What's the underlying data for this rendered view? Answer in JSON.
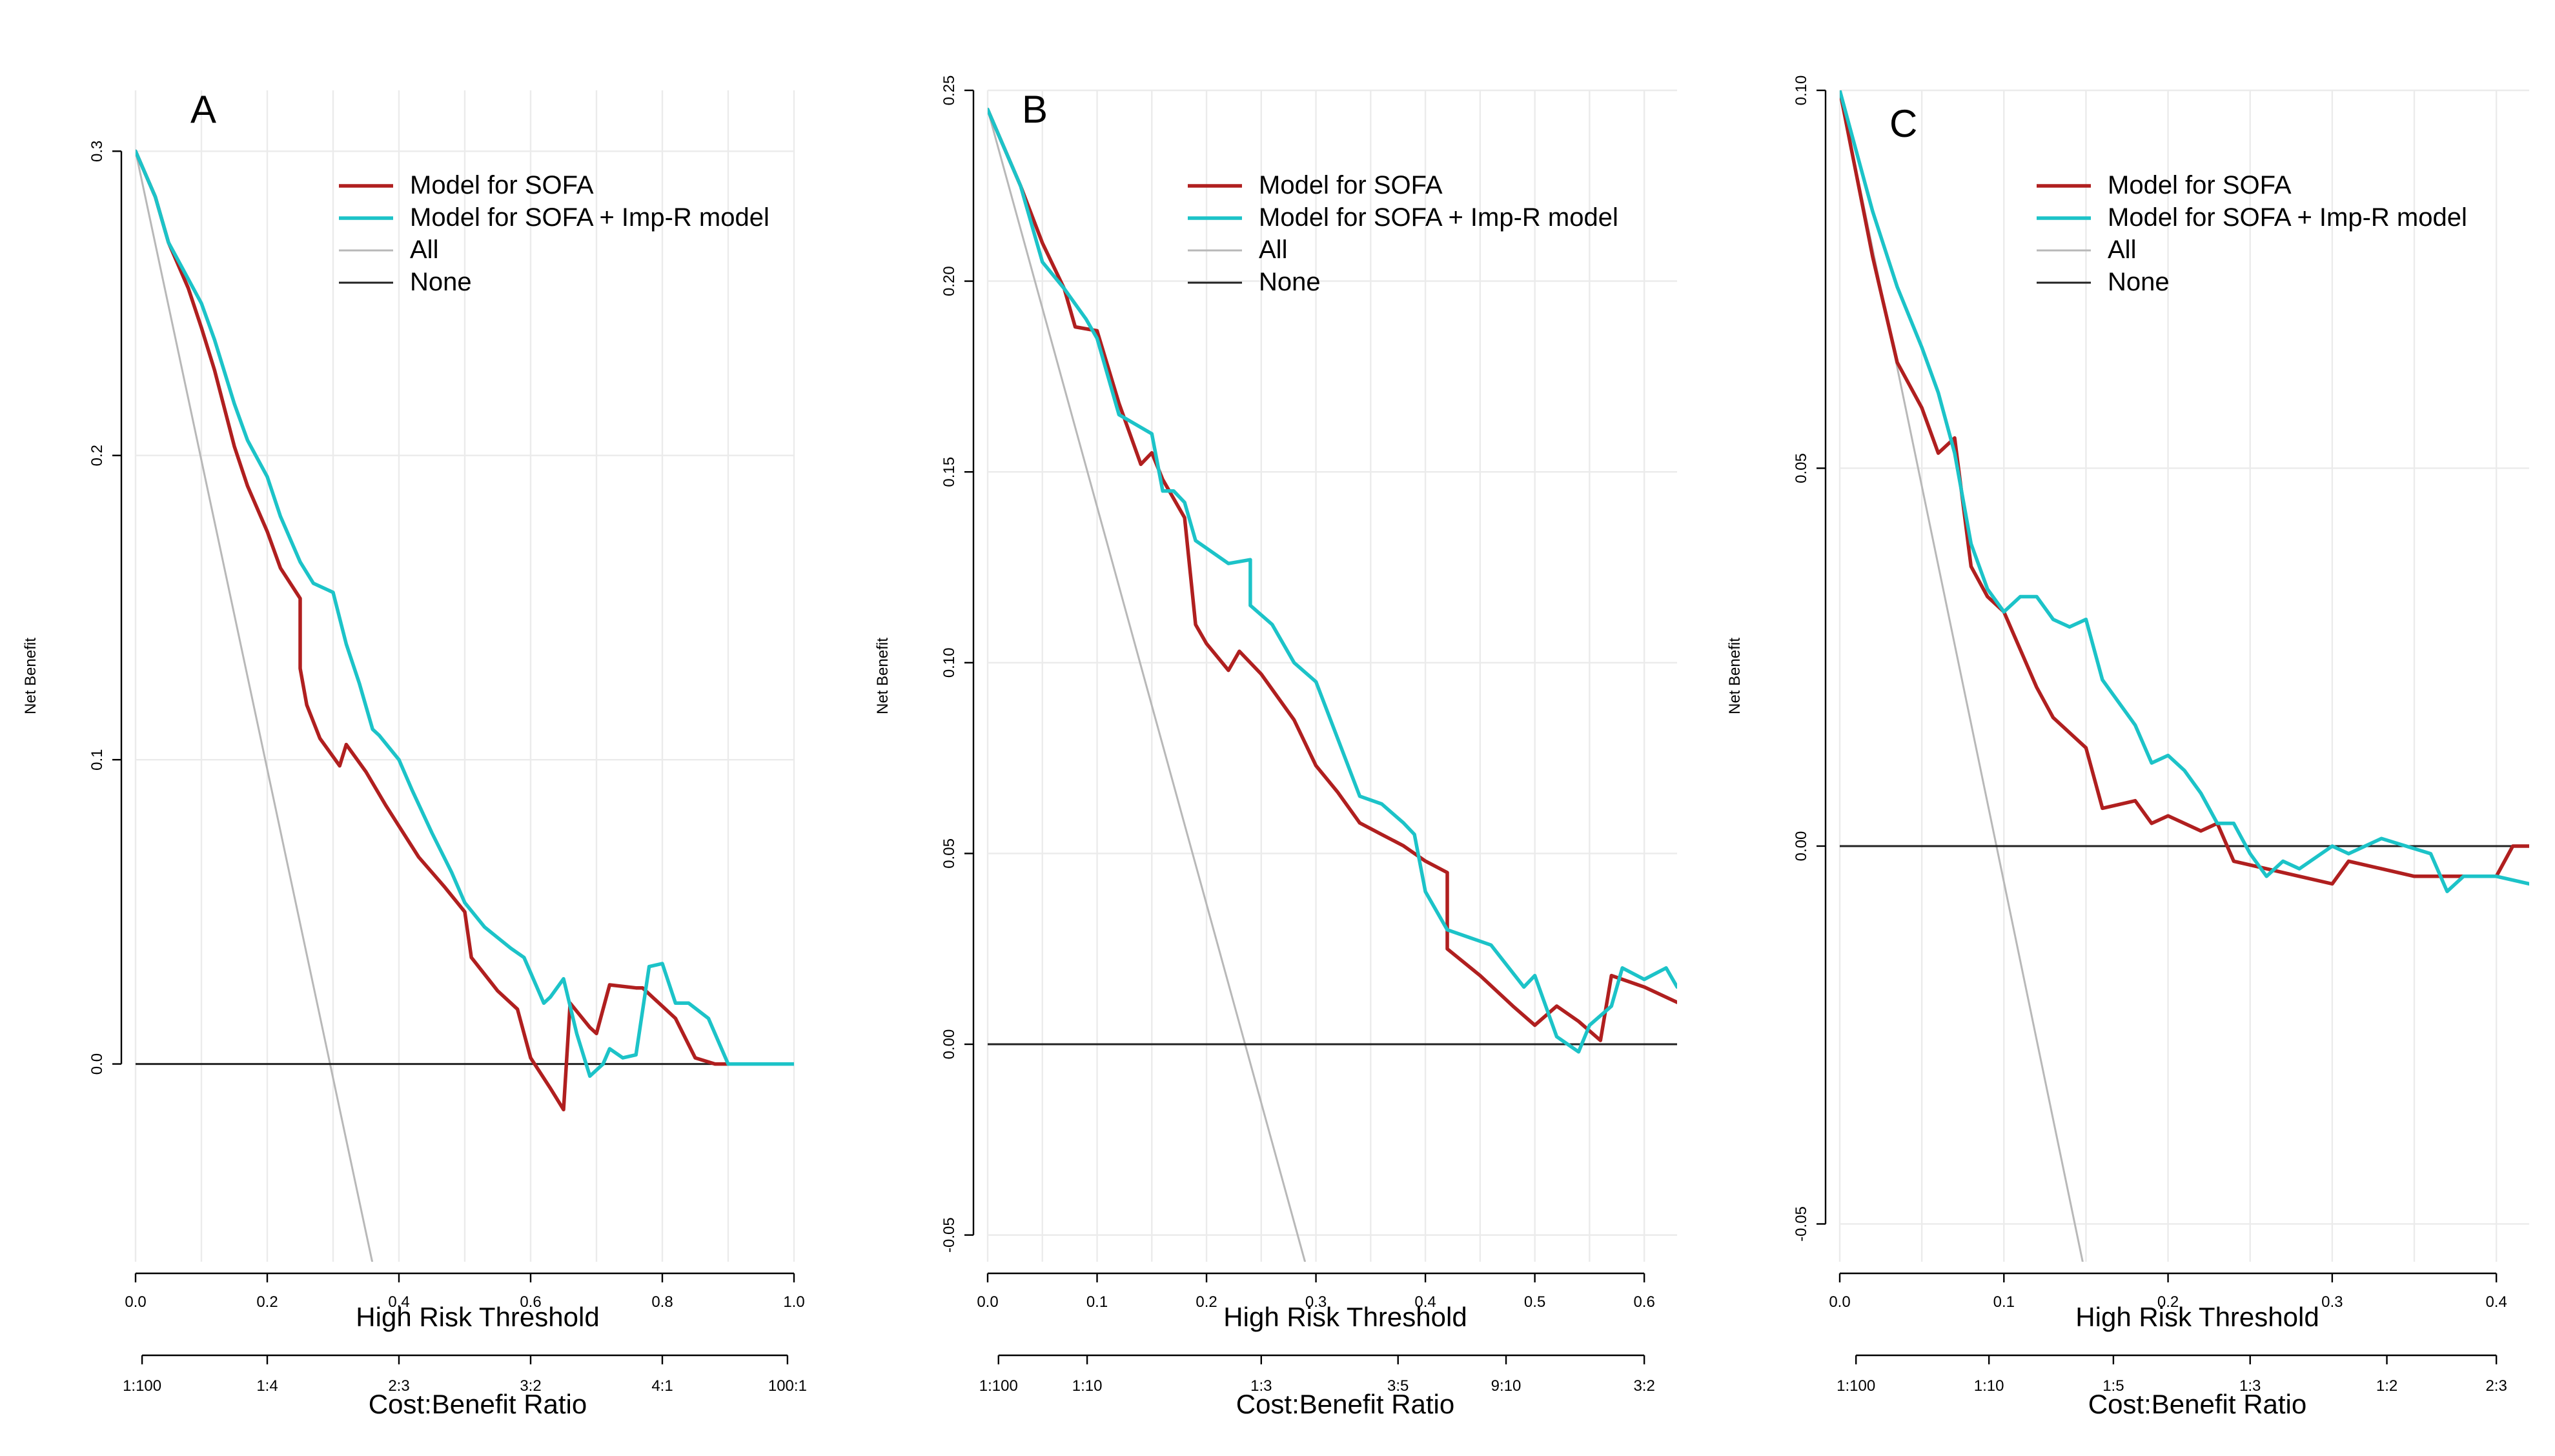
{
  "chart_data": [
    {
      "type": "line",
      "panel_label": "A",
      "xlabel": "High Risk Threshold",
      "ylabel": "Net Benefit",
      "xlim": [
        0,
        1.0
      ],
      "ylim": [
        -0.065,
        0.32
      ],
      "x_ticks": [
        "0.0",
        "0.2",
        "0.4",
        "0.6",
        "0.8",
        "1.0"
      ],
      "x_tick_values": [
        0,
        0.2,
        0.4,
        0.6,
        0.8,
        1.0
      ],
      "y_ticks": [
        "0.0",
        "0.1",
        "0.2",
        "0.3"
      ],
      "y_tick_values": [
        0,
        0.1,
        0.2,
        0.3
      ],
      "secondary_axis_label": "Cost:Benefit Ratio",
      "secondary_ticks": [
        "1:100",
        "1:4",
        "2:3",
        "3:2",
        "4:1",
        "100:1"
      ],
      "secondary_tick_thresholds": [
        0.0099,
        0.2,
        0.4,
        0.6,
        0.8,
        0.9901
      ],
      "legend": [
        "Model for SOFA",
        "Model for SOFA + Imp-R model",
        "All",
        "None"
      ],
      "grid": true,
      "series": [
        {
          "name": "Model for SOFA",
          "color": "#b01f1f",
          "x": [
            0,
            0.03,
            0.05,
            0.08,
            0.1,
            0.12,
            0.15,
            0.17,
            0.2,
            0.22,
            0.25,
            0.25,
            0.26,
            0.28,
            0.31,
            0.32,
            0.35,
            0.38,
            0.43,
            0.47,
            0.5,
            0.51,
            0.55,
            0.58,
            0.6,
            0.63,
            0.65,
            0.66,
            0.69,
            0.7,
            0.72,
            0.76,
            0.77,
            0.82,
            0.85,
            0.88,
            0.9
          ],
          "y": [
            0.3,
            0.285,
            0.27,
            0.255,
            0.242,
            0.228,
            0.203,
            0.19,
            0.175,
            0.163,
            0.153,
            0.13,
            0.118,
            0.107,
            0.098,
            0.105,
            0.096,
            0.085,
            0.068,
            0.058,
            0.05,
            0.035,
            0.024,
            0.018,
            0.002,
            -0.008,
            -0.015,
            0.02,
            0.012,
            0.01,
            0.026,
            0.025,
            0.025,
            0.015,
            0.002,
            0,
            0
          ]
        },
        {
          "name": "Model for SOFA + Imp-R model",
          "color": "#1cc3c8",
          "x": [
            0,
            0.03,
            0.05,
            0.08,
            0.1,
            0.12,
            0.15,
            0.17,
            0.2,
            0.22,
            0.25,
            0.27,
            0.3,
            0.32,
            0.34,
            0.36,
            0.37,
            0.4,
            0.42,
            0.45,
            0.48,
            0.5,
            0.53,
            0.57,
            0.59,
            0.6,
            0.62,
            0.63,
            0.65,
            0.67,
            0.69,
            0.71,
            0.72,
            0.74,
            0.76,
            0.78,
            0.8,
            0.82,
            0.84,
            0.87,
            0.9,
            0.95,
            1.0
          ],
          "y": [
            0.3,
            0.285,
            0.27,
            0.258,
            0.25,
            0.238,
            0.217,
            0.205,
            0.193,
            0.18,
            0.165,
            0.158,
            0.155,
            0.138,
            0.125,
            0.11,
            0.108,
            0.1,
            0.09,
            0.076,
            0.063,
            0.053,
            0.045,
            0.038,
            0.035,
            0.03,
            0.02,
            0.022,
            0.028,
            0.01,
            -0.004,
            0,
            0.005,
            0.002,
            0.003,
            0.032,
            0.033,
            0.02,
            0.02,
            0.015,
            0,
            0,
            0
          ]
        },
        {
          "name": "All",
          "color": "#b8b8b8",
          "x": [
            0,
            0.36
          ],
          "y": [
            0.3,
            -0.0656
          ]
        },
        {
          "name": "None",
          "color": "#222222",
          "x": [
            0,
            1.0
          ],
          "y": [
            0,
            0
          ]
        }
      ]
    },
    {
      "type": "line",
      "panel_label": "B",
      "xlabel": "High Risk Threshold",
      "ylabel": "Net Benefit",
      "xlim": [
        0,
        0.63
      ],
      "ylim": [
        -0.057,
        0.25
      ],
      "x_ticks": [
        "0.0",
        "0.1",
        "0.2",
        "0.3",
        "0.4",
        "0.5",
        "0.6"
      ],
      "x_tick_values": [
        0,
        0.1,
        0.2,
        0.3,
        0.4,
        0.5,
        0.6
      ],
      "y_ticks": [
        "-0.05",
        "0.00",
        "0.05",
        "0.10",
        "0.15",
        "0.20",
        "0.25"
      ],
      "y_tick_values": [
        -0.05,
        0,
        0.05,
        0.1,
        0.15,
        0.2,
        0.25
      ],
      "secondary_axis_label": "Cost:Benefit Ratio",
      "secondary_ticks": [
        "1:100",
        "1:10",
        "1:3",
        "3:5",
        "9:10",
        "3:2"
      ],
      "secondary_tick_thresholds": [
        0.0099,
        0.0909,
        0.25,
        0.375,
        0.4737,
        0.6
      ],
      "legend": [
        "Model for SOFA",
        "Model for SOFA + Imp-R model",
        "All",
        "None"
      ],
      "grid": true,
      "series": [
        {
          "name": "Model for SOFA",
          "color": "#b01f1f",
          "x": [
            0,
            0.03,
            0.05,
            0.07,
            0.08,
            0.1,
            0.12,
            0.14,
            0.15,
            0.16,
            0.18,
            0.19,
            0.2,
            0.22,
            0.23,
            0.25,
            0.28,
            0.3,
            0.32,
            0.34,
            0.36,
            0.38,
            0.4,
            0.42,
            0.42,
            0.45,
            0.48,
            0.5,
            0.52,
            0.54,
            0.56,
            0.57,
            0.6,
            0.63
          ],
          "y": [
            0.245,
            0.225,
            0.21,
            0.198,
            0.188,
            0.187,
            0.168,
            0.152,
            0.155,
            0.148,
            0.138,
            0.11,
            0.105,
            0.098,
            0.103,
            0.097,
            0.085,
            0.073,
            0.066,
            0.058,
            0.055,
            0.052,
            0.048,
            0.045,
            0.025,
            0.018,
            0.01,
            0.005,
            0.01,
            0.006,
            0.001,
            0.018,
            0.015,
            0.011
          ]
        },
        {
          "name": "Model for SOFA + Imp-R model",
          "color": "#1cc3c8",
          "x": [
            0,
            0.03,
            0.05,
            0.07,
            0.09,
            0.1,
            0.12,
            0.15,
            0.16,
            0.17,
            0.18,
            0.19,
            0.2,
            0.22,
            0.24,
            0.24,
            0.26,
            0.28,
            0.3,
            0.32,
            0.34,
            0.36,
            0.38,
            0.39,
            0.4,
            0.42,
            0.44,
            0.46,
            0.49,
            0.5,
            0.52,
            0.54,
            0.55,
            0.57,
            0.58,
            0.6,
            0.62,
            0.63
          ],
          "y": [
            0.245,
            0.225,
            0.205,
            0.198,
            0.19,
            0.185,
            0.165,
            0.16,
            0.145,
            0.145,
            0.142,
            0.132,
            0.13,
            0.126,
            0.127,
            0.115,
            0.11,
            0.1,
            0.095,
            0.08,
            0.065,
            0.063,
            0.058,
            0.055,
            0.04,
            0.03,
            0.028,
            0.026,
            0.015,
            0.018,
            0.002,
            -0.002,
            0.005,
            0.01,
            0.02,
            0.017,
            0.02,
            0.015
          ]
        },
        {
          "name": "All",
          "color": "#b8b8b8",
          "x": [
            0,
            0.29
          ],
          "y": [
            0.245,
            -0.057
          ]
        },
        {
          "name": "None",
          "color": "#222222",
          "x": [
            0,
            0.63
          ],
          "y": [
            0,
            0
          ]
        }
      ]
    },
    {
      "type": "line",
      "panel_label": "C",
      "xlabel": "High Risk Threshold",
      "ylabel": "Net Benefit",
      "xlim": [
        0,
        0.42
      ],
      "ylim": [
        -0.055,
        0.1
      ],
      "x_ticks": [
        "0.0",
        "0.1",
        "0.2",
        "0.3",
        "0.4"
      ],
      "x_tick_values": [
        0,
        0.1,
        0.2,
        0.3,
        0.4
      ],
      "y_ticks": [
        "-0.05",
        "0.00",
        "0.05",
        "0.10"
      ],
      "y_tick_values": [
        -0.05,
        0,
        0.05,
        0.1
      ],
      "secondary_axis_label": "Cost:Benefit Ratio",
      "secondary_ticks": [
        "1:100",
        "1:10",
        "1:5",
        "1:3",
        "1:2",
        "2:3"
      ],
      "secondary_tick_thresholds": [
        0.0099,
        0.0909,
        0.1667,
        0.25,
        0.3333,
        0.4
      ],
      "legend": [
        "Model for SOFA",
        "Model for SOFA + Imp-R model",
        "All",
        "None"
      ],
      "grid": true,
      "series": [
        {
          "name": "Model for SOFA",
          "color": "#b01f1f",
          "x": [
            0,
            0.02,
            0.035,
            0.05,
            0.06,
            0.07,
            0.08,
            0.09,
            0.1,
            0.12,
            0.13,
            0.15,
            0.16,
            0.18,
            0.19,
            0.2,
            0.22,
            0.23,
            0.24,
            0.26,
            0.28,
            0.3,
            0.31,
            0.33,
            0.35,
            0.38,
            0.4,
            0.41,
            0.42
          ],
          "y": [
            0.1,
            0.078,
            0.064,
            0.058,
            0.052,
            0.054,
            0.037,
            0.033,
            0.031,
            0.021,
            0.017,
            0.013,
            0.005,
            0.006,
            0.003,
            0.004,
            0.002,
            0.003,
            -0.002,
            -0.003,
            -0.004,
            -0.005,
            -0.002,
            -0.003,
            -0.004,
            -0.004,
            -0.004,
            0,
            0
          ]
        },
        {
          "name": "Model for SOFA + Imp-R model",
          "color": "#1cc3c8",
          "x": [
            0,
            0.02,
            0.035,
            0.05,
            0.06,
            0.07,
            0.08,
            0.09,
            0.1,
            0.11,
            0.12,
            0.13,
            0.14,
            0.15,
            0.16,
            0.18,
            0.19,
            0.2,
            0.21,
            0.22,
            0.23,
            0.24,
            0.25,
            0.26,
            0.27,
            0.28,
            0.3,
            0.31,
            0.33,
            0.36,
            0.37,
            0.38,
            0.4,
            0.42
          ],
          "y": [
            0.1,
            0.084,
            0.074,
            0.066,
            0.06,
            0.052,
            0.04,
            0.034,
            0.031,
            0.033,
            0.033,
            0.03,
            0.029,
            0.03,
            0.022,
            0.016,
            0.011,
            0.012,
            0.01,
            0.007,
            0.003,
            0.003,
            -0.001,
            -0.004,
            -0.002,
            -0.003,
            0,
            -0.001,
            0.001,
            -0.001,
            -0.006,
            -0.004,
            -0.004,
            -0.005
          ]
        },
        {
          "name": "All",
          "color": "#b8b8b8",
          "x": [
            0,
            0.148
          ],
          "y": [
            0.1,
            -0.055
          ]
        },
        {
          "name": "None",
          "color": "#222222",
          "x": [
            0,
            0.42
          ],
          "y": [
            0,
            0
          ]
        }
      ]
    }
  ]
}
